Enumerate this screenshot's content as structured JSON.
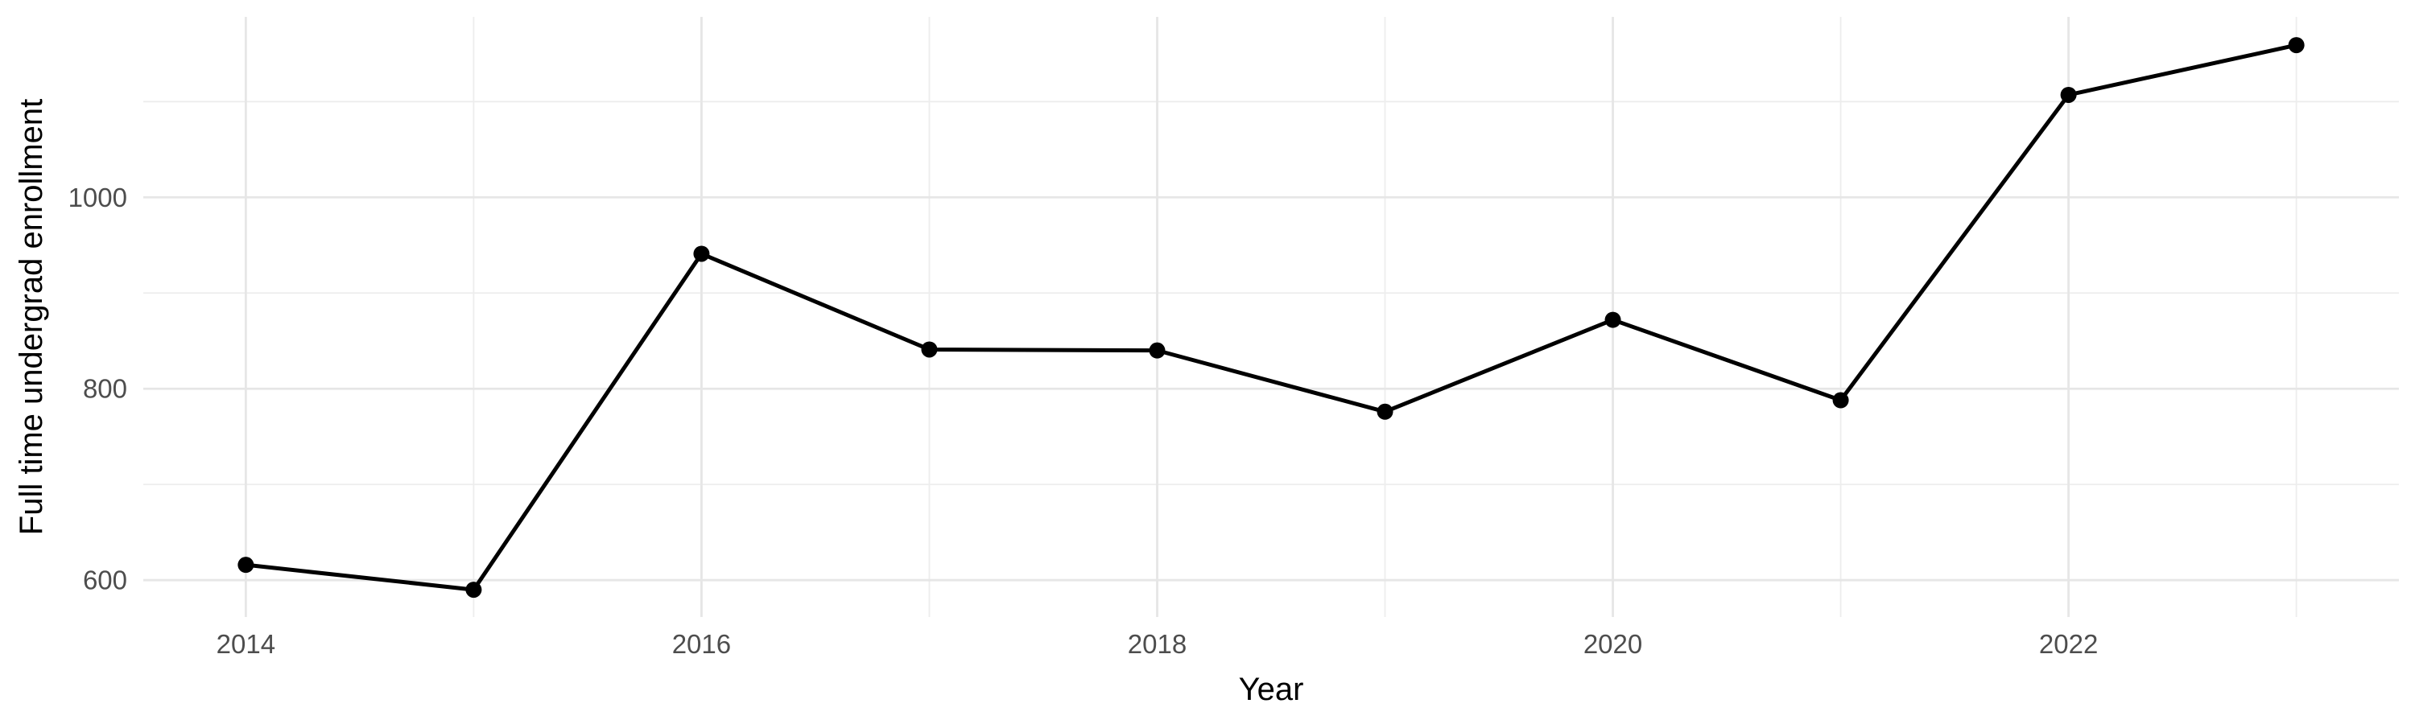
{
  "chart_data": {
    "type": "line",
    "title": "",
    "xlabel": "Year",
    "ylabel": "Full time undergrad enrollment",
    "x": [
      2014,
      2015,
      2016,
      2017,
      2018,
      2019,
      2020,
      2021,
      2022,
      2023
    ],
    "series": [
      {
        "name": "Full time undergrad enrollment",
        "values": [
          616,
          590,
          941,
          841,
          840,
          776,
          872,
          788,
          1107,
          1159
        ]
      }
    ],
    "x_major_ticks": [
      2014,
      2016,
      2018,
      2020,
      2022
    ],
    "x_major_tick_labels": [
      "2014",
      "2016",
      "2018",
      "2020",
      "2022"
    ],
    "x_minor_ticks": [
      2015,
      2017,
      2019,
      2021,
      2023
    ],
    "y_major_ticks": [
      600,
      800,
      1000
    ],
    "y_major_tick_labels": [
      "600",
      "800",
      "1000"
    ],
    "y_minor_ticks": [
      700,
      900,
      1100
    ],
    "xlim": [
      2013.55,
      2023.45
    ],
    "ylim": [
      561.5,
      1188.5
    ],
    "grid": "on",
    "legend": "none",
    "style": {
      "line_color": "#000000",
      "point_color": "#000000",
      "grid_major_color": "#E6E6E6",
      "grid_minor_color": "#EDEDED",
      "tick_label_color": "#4D4D4D",
      "axis_title_color": "#000000",
      "background_color": "#FFFFFF"
    }
  }
}
